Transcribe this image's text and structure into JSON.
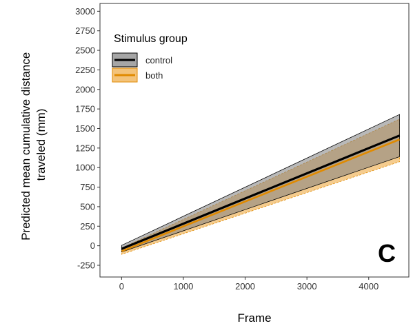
{
  "chart_data": {
    "type": "line",
    "xlabel": "Frame",
    "ylabel": "Predicted mean cumulative distance traveled (mm)",
    "ylabel_lines": [
      "Predicted mean cumulative distance",
      "traveled (mm)"
    ],
    "xlim": [
      -350,
      4650
    ],
    "ylim": [
      -400,
      3100
    ],
    "xticks": [
      0,
      1000,
      2000,
      3000,
      4000
    ],
    "yticks": [
      -250,
      0,
      250,
      500,
      750,
      1000,
      1250,
      1500,
      1750,
      2000,
      2250,
      2500,
      2750,
      3000
    ],
    "grid": false,
    "panel_label": "C",
    "legend": {
      "title": "Stimulus group",
      "placement": "top-left",
      "entries": [
        "control",
        "both"
      ]
    },
    "series": [
      {
        "name": "control",
        "color": "#000000",
        "fill": "#7f7f7f",
        "x": [
          0,
          4500
        ],
        "y": [
          -40,
          1410
        ],
        "ci_lower": [
          -80,
          1140
        ],
        "ci_upper": [
          5,
          1680
        ]
      },
      {
        "name": "both",
        "color": "#e08a00",
        "fill": "#f3c37a",
        "x": [
          0,
          4500
        ],
        "y": [
          -70,
          1360
        ],
        "ci_lower": [
          -110,
          1075
        ],
        "ci_upper": [
          -30,
          1620
        ]
      }
    ]
  }
}
